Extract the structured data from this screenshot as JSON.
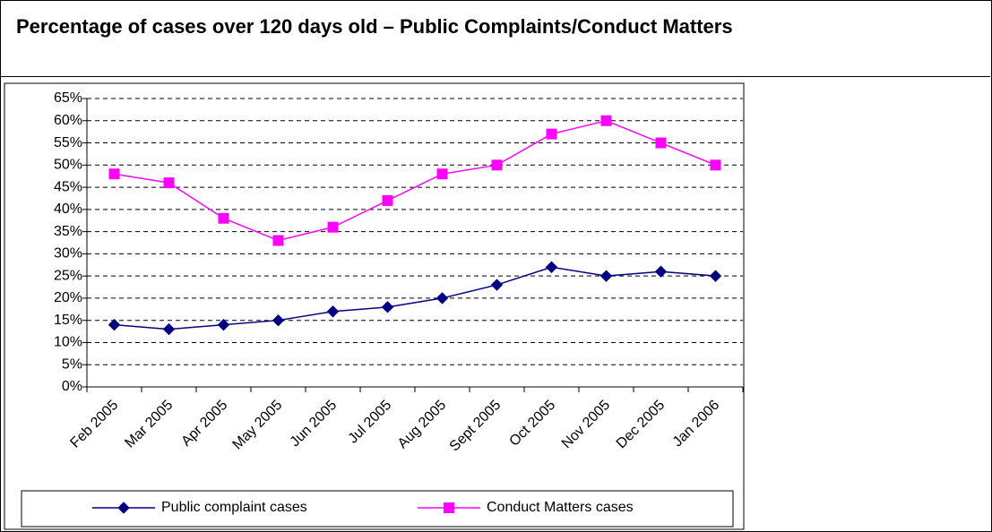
{
  "chart_data": {
    "type": "line",
    "title": "Percentage of cases over 120 days old – Public Complaints/Conduct Matters",
    "categories": [
      "Feb 2005",
      "Mar 2005",
      "Apr 2005",
      "May 2005",
      "Jun 2005",
      "Jul 2005",
      "Aug 2005",
      "Sept 2005",
      "Oct 2005",
      "Nov 2005",
      "Dec 2005",
      "Jan 2006"
    ],
    "series": [
      {
        "name": "Public complaint cases",
        "color": "#000080",
        "marker": "diamond",
        "values": [
          14,
          13,
          14,
          15,
          17,
          18,
          20,
          23,
          27,
          25,
          26,
          25
        ]
      },
      {
        "name": "Conduct Matters cases",
        "color": "#ff00ff",
        "marker": "square",
        "values": [
          48,
          46,
          38,
          33,
          36,
          42,
          48,
          50,
          57,
          60,
          55,
          50
        ]
      }
    ],
    "ylim": [
      0,
      65
    ],
    "yticks": [
      {
        "value": 0,
        "label": "0%"
      },
      {
        "value": 5,
        "label": "5%"
      },
      {
        "value": 10,
        "label": "10%"
      },
      {
        "value": 15,
        "label": "15%"
      },
      {
        "value": 20,
        "label": "20%"
      },
      {
        "value": 25,
        "label": "25%"
      },
      {
        "value": 30,
        "label": "30%"
      },
      {
        "value": 35,
        "label": "35%"
      },
      {
        "value": 40,
        "label": "40%"
      },
      {
        "value": 45,
        "label": "45%"
      },
      {
        "value": 50,
        "label": "50%"
      },
      {
        "value": 55,
        "label": "55%"
      },
      {
        "value": 60,
        "label": "60%"
      },
      {
        "value": 65,
        "label": "65%"
      }
    ],
    "grid": true,
    "legend": "bottom"
  }
}
